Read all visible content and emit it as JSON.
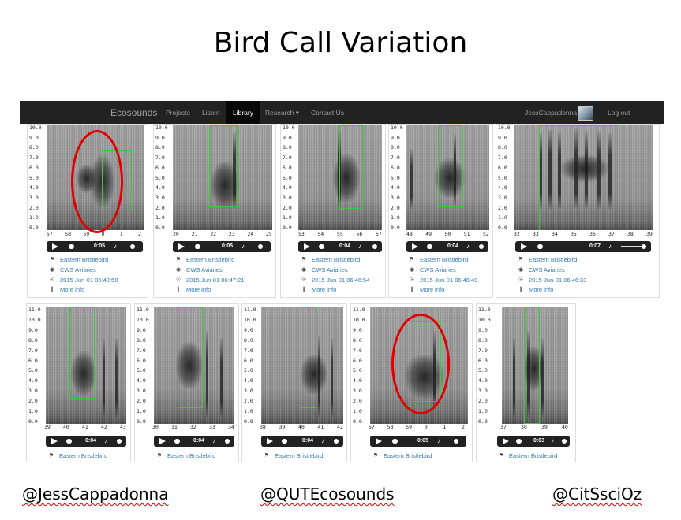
{
  "slide": {
    "title": "Bird Call Variation",
    "footer": [
      "@JessCappadonna",
      "@QUTEcosounds",
      "@CitSsciOz"
    ]
  },
  "navbar": {
    "brand": "Ecosounds",
    "items": [
      "Projects",
      "Listen",
      "Library",
      "Research ▾",
      "Contact Us"
    ],
    "active": "Library",
    "user": "JessCappadonna",
    "logout": "Log out"
  },
  "colors": {
    "navbar": "#222222",
    "link": "#337ab7",
    "selection_box": "#3cc83c",
    "annotation_ring": "#e00000"
  },
  "row1": [
    {
      "x_ticks": [
        "57",
        "58",
        "59",
        "0",
        "1",
        "2"
      ],
      "y_ticks": [
        "10.0",
        "9.0",
        "8.0",
        "7.0",
        "6.0",
        "5.0",
        "4.0",
        "3.0",
        "2.0",
        "1.0",
        "0.0"
      ],
      "time": "0:05",
      "species": "Eastern Bristlebird",
      "site": "CWS Aviaries",
      "date": "2015-Jun-01 06:49:58",
      "more": "More info"
    },
    {
      "x_ticks": [
        "20",
        "21",
        "22",
        "23",
        "24",
        "25"
      ],
      "y_ticks": [
        "10.0",
        "9.0",
        "8.0",
        "7.0",
        "6.0",
        "5.0",
        "4.0",
        "3.0",
        "2.0",
        "1.0",
        "0.0"
      ],
      "time": "0:05",
      "species": "Eastern Bristlebird",
      "site": "CWS Aviaries",
      "date": "2015-Jun-01 06:47:21",
      "more": "More info"
    },
    {
      "x_ticks": [
        "53",
        "54",
        "55",
        "56",
        "57"
      ],
      "y_ticks": [
        "10.0",
        "9.0",
        "8.0",
        "7.0",
        "6.0",
        "5.0",
        "4.0",
        "3.0",
        "2.0",
        "1.0",
        "0.0"
      ],
      "time": "0:04",
      "species": "Eastern Bristlebird",
      "site": "CWS Aviaries",
      "date": "2015-Jun-01 06:46:54",
      "more": "More info"
    },
    {
      "x_ticks": [
        "48",
        "49",
        "50",
        "51",
        "52"
      ],
      "y_ticks": [
        "10.0",
        "9.0",
        "8.0",
        "7.0",
        "6.0",
        "5.0",
        "4.0",
        "3.0",
        "2.0",
        "1.0",
        "0.0"
      ],
      "time": "0:04",
      "species": "Eastern Bristlebird",
      "site": "CWS Aviaries",
      "date": "2015-Jun-01 06:46:49",
      "more": "More info"
    },
    {
      "x_ticks": [
        "32",
        "33",
        "34",
        "35",
        "36",
        "37",
        "38",
        "39"
      ],
      "y_ticks": [
        "10.0",
        "9.0",
        "8.0",
        "7.0",
        "6.0",
        "5.0",
        "4.0",
        "3.0",
        "2.0",
        "1.0",
        "0.0"
      ],
      "time": "0:07",
      "species": "Eastern Bristlebird",
      "site": "CWS Aviaries",
      "date": "2015-Jun-01 06:46:33",
      "more": "More info"
    }
  ],
  "row2": [
    {
      "x_ticks": [
        "39",
        "40",
        "41",
        "42",
        "43"
      ],
      "y_ticks": [
        "11.0",
        "10.0",
        "9.0",
        "8.0",
        "7.0",
        "6.0",
        "5.0",
        "4.0",
        "3.0",
        "2.0",
        "1.0",
        "0.0"
      ],
      "time": "0:04",
      "species": "Eastern Bristlebird"
    },
    {
      "x_ticks": [
        "30",
        "31",
        "32",
        "33",
        "34"
      ],
      "y_ticks": [
        "11.0",
        "10.0",
        "9.0",
        "8.0",
        "7.0",
        "6.0",
        "5.0",
        "4.0",
        "3.0",
        "2.0",
        "1.0",
        "0.0"
      ],
      "time": "0:04",
      "species": "Eastern Bristlebird"
    },
    {
      "x_ticks": [
        "38",
        "39",
        "40",
        "41",
        "42"
      ],
      "y_ticks": [
        "11.0",
        "10.0",
        "9.0",
        "8.0",
        "7.0",
        "6.0",
        "5.0",
        "4.0",
        "3.0",
        "2.0",
        "1.0",
        "0.0"
      ],
      "time": "0:04",
      "species": "Eastern Bristlebird"
    },
    {
      "x_ticks": [
        "57",
        "58",
        "59",
        "0",
        "1",
        "2"
      ],
      "y_ticks": [
        "11.0",
        "10.0",
        "9.0",
        "8.0",
        "7.0",
        "6.0",
        "5.0",
        "4.0",
        "3.0",
        "2.0",
        "1.0",
        "0.0"
      ],
      "time": "0:05",
      "species": "Eastern Bristlebird"
    },
    {
      "x_ticks": [
        "37",
        "38",
        "39",
        "40"
      ],
      "y_ticks": [
        "11.0",
        "10.0",
        "9.0",
        "8.0",
        "7.0",
        "6.0",
        "5.0",
        "4.0",
        "3.0",
        "2.0",
        "1.0",
        "0.0"
      ],
      "time": "0:03",
      "species": "Eastern Bristlebird"
    }
  ]
}
